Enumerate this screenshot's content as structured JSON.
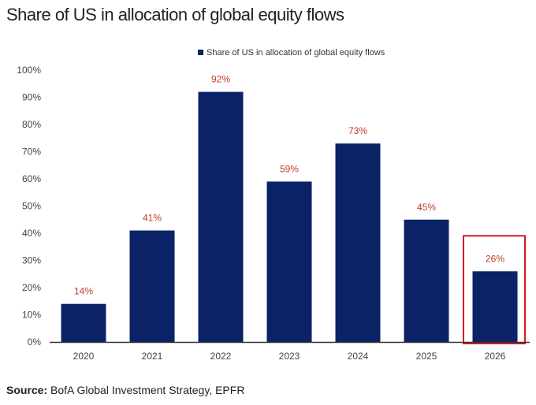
{
  "chart_data": {
    "type": "bar",
    "title": "Share of US in allocation of global equity flows",
    "categories": [
      "2020",
      "2021",
      "2022",
      "2023",
      "2024",
      "2025",
      "2026"
    ],
    "series": [
      {
        "name": "Share of US in allocation of global equity flows",
        "values": [
          14,
          41,
          92,
          59,
          73,
          45,
          26
        ]
      }
    ],
    "data_labels": [
      "14%",
      "41%",
      "92%",
      "59%",
      "73%",
      "45%",
      "26%"
    ],
    "yticks": [
      "0%",
      "10%",
      "20%",
      "30%",
      "40%",
      "50%",
      "60%",
      "70%",
      "80%",
      "90%",
      "100%"
    ],
    "ylim": [
      0,
      100
    ],
    "xlabel": "",
    "ylabel": "",
    "grid": false,
    "legend": "top-center",
    "highlighted_category": "2026",
    "colors": {
      "bar": "#0b2266",
      "label": "#c0392b",
      "highlight_box": "#d71920"
    }
  },
  "source": {
    "label": "Source:",
    "text": " BofA Global Investment Strategy, EPFR"
  }
}
